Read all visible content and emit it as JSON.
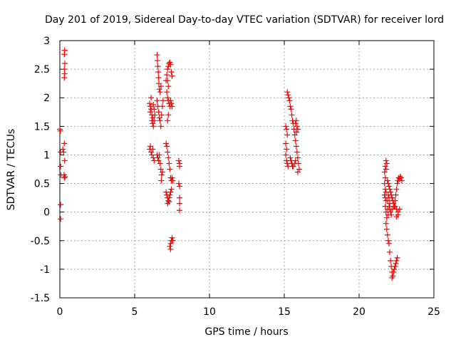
{
  "chart_data": {
    "type": "scatter",
    "title": "Day 201 of 2019, Sidereal Day-to-day VTEC variation (SDTVAR) for receiver lord",
    "xlabel": "GPS time / hours",
    "ylabel": "SDTVAR / TECUs",
    "xlim": [
      0,
      25
    ],
    "ylim": [
      -1.5,
      3
    ],
    "xticks": [
      0,
      5,
      10,
      15,
      20,
      25
    ],
    "yticks": [
      -1.5,
      -1,
      -0.5,
      0,
      0.5,
      1,
      1.5,
      2,
      2.5,
      3
    ],
    "xtick_labels": [
      "0",
      "5",
      "10",
      "15",
      "20",
      "25"
    ],
    "ytick_labels": [
      "-1.5",
      "-1",
      "-0.5",
      "0",
      "0.5",
      "1",
      "1.5",
      "2",
      "2.5",
      "3"
    ],
    "grid": true,
    "marker": "+",
    "color": "#ff0000",
    "series": [
      {
        "name": "lord",
        "points": [
          [
            0.0,
            1.45
          ],
          [
            0.03,
            1.42
          ],
          [
            0.05,
            1.05
          ],
          [
            0.05,
            0.8
          ],
          [
            0.07,
            0.65
          ],
          [
            0.05,
            0.13
          ],
          [
            0.05,
            -0.12
          ],
          [
            0.2,
            1.1
          ],
          [
            0.25,
            1.05
          ],
          [
            0.3,
            1.2
          ],
          [
            0.32,
            0.9
          ],
          [
            0.28,
            0.65
          ],
          [
            0.3,
            0.6
          ],
          [
            0.35,
            0.62
          ],
          [
            0.32,
            2.83
          ],
          [
            0.3,
            2.76
          ],
          [
            0.33,
            2.6
          ],
          [
            0.3,
            2.5
          ],
          [
            0.32,
            2.42
          ],
          [
            0.3,
            2.35
          ],
          [
            6.0,
            1.9
          ],
          [
            6.05,
            1.85
          ],
          [
            6.1,
            1.8
          ],
          [
            6.05,
            1.75
          ],
          [
            6.15,
            1.7
          ],
          [
            6.2,
            1.65
          ],
          [
            6.15,
            1.6
          ],
          [
            6.2,
            1.55
          ],
          [
            6.25,
            1.5
          ],
          [
            6.3,
            1.6
          ],
          [
            6.35,
            1.7
          ],
          [
            6.3,
            1.8
          ],
          [
            6.25,
            1.88
          ],
          [
            6.1,
            2.0
          ],
          [
            6.0,
            1.1
          ],
          [
            6.05,
            1.15
          ],
          [
            6.1,
            1.05
          ],
          [
            6.15,
            1.0
          ],
          [
            6.2,
            1.1
          ],
          [
            6.25,
            0.95
          ],
          [
            6.3,
            0.9
          ],
          [
            6.5,
            2.75
          ],
          [
            6.52,
            2.65
          ],
          [
            6.55,
            2.55
          ],
          [
            6.58,
            2.45
          ],
          [
            6.6,
            2.35
          ],
          [
            6.62,
            2.25
          ],
          [
            6.65,
            2.15
          ],
          [
            6.7,
            2.1
          ],
          [
            6.75,
            2.2
          ],
          [
            6.5,
            1.95
          ],
          [
            6.55,
            1.85
          ],
          [
            6.6,
            1.75
          ],
          [
            6.65,
            1.65
          ],
          [
            6.7,
            1.6
          ],
          [
            6.75,
            1.5
          ],
          [
            6.8,
            1.7
          ],
          [
            6.85,
            1.85
          ],
          [
            6.9,
            1.95
          ],
          [
            6.5,
            1.0
          ],
          [
            6.55,
            0.95
          ],
          [
            6.6,
            0.9
          ],
          [
            6.65,
            1.0
          ],
          [
            6.7,
            0.85
          ],
          [
            6.75,
            0.75
          ],
          [
            6.8,
            0.65
          ],
          [
            6.85,
            0.7
          ],
          [
            6.78,
            0.55
          ],
          [
            7.1,
            2.3
          ],
          [
            7.15,
            2.4
          ],
          [
            7.2,
            2.5
          ],
          [
            7.25,
            2.55
          ],
          [
            7.3,
            2.6
          ],
          [
            7.35,
            2.62
          ],
          [
            7.4,
            2.58
          ],
          [
            7.45,
            2.45
          ],
          [
            7.5,
            2.38
          ],
          [
            7.2,
            2.3
          ],
          [
            7.25,
            2.2
          ],
          [
            7.15,
            2.1
          ],
          [
            7.2,
            2.0
          ],
          [
            7.25,
            1.95
          ],
          [
            7.3,
            1.9
          ],
          [
            7.35,
            1.85
          ],
          [
            7.4,
            1.95
          ],
          [
            7.45,
            1.9
          ],
          [
            7.5,
            1.85
          ],
          [
            7.2,
            1.6
          ],
          [
            7.25,
            1.7
          ],
          [
            7.1,
            1.2
          ],
          [
            7.15,
            1.15
          ],
          [
            7.2,
            1.05
          ],
          [
            7.25,
            0.95
          ],
          [
            7.3,
            0.85
          ],
          [
            7.35,
            0.75
          ],
          [
            7.4,
            0.6
          ],
          [
            7.45,
            0.55
          ],
          [
            7.5,
            0.6
          ],
          [
            7.55,
            0.55
          ],
          [
            7.1,
            0.35
          ],
          [
            7.15,
            0.3
          ],
          [
            7.2,
            0.25
          ],
          [
            7.25,
            0.2
          ],
          [
            7.3,
            0.25
          ],
          [
            7.35,
            0.3
          ],
          [
            7.4,
            0.35
          ],
          [
            7.45,
            0.4
          ],
          [
            7.3,
            0.18
          ],
          [
            7.2,
            0.15
          ],
          [
            7.35,
            -0.6
          ],
          [
            7.4,
            -0.55
          ],
          [
            7.45,
            -0.5
          ],
          [
            7.5,
            -0.45
          ],
          [
            7.55,
            -0.5
          ],
          [
            7.4,
            -0.65
          ],
          [
            7.95,
            0.9
          ],
          [
            8.0,
            0.85
          ],
          [
            8.0,
            0.8
          ],
          [
            7.95,
            0.5
          ],
          [
            8.0,
            0.45
          ],
          [
            8.0,
            0.25
          ],
          [
            8.0,
            0.15
          ],
          [
            8.0,
            0.03
          ],
          [
            15.1,
            1.5
          ],
          [
            15.15,
            1.45
          ],
          [
            15.2,
            1.35
          ],
          [
            15.1,
            1.2
          ],
          [
            15.15,
            1.1
          ],
          [
            15.1,
            1.0
          ],
          [
            15.15,
            0.9
          ],
          [
            15.2,
            0.85
          ],
          [
            15.25,
            0.8
          ],
          [
            15.2,
            2.1
          ],
          [
            15.25,
            2.05
          ],
          [
            15.3,
            2.0
          ],
          [
            15.35,
            1.95
          ],
          [
            15.4,
            1.85
          ],
          [
            15.45,
            1.8
          ],
          [
            15.5,
            1.7
          ],
          [
            15.55,
            1.6
          ],
          [
            15.6,
            1.55
          ],
          [
            15.65,
            1.45
          ],
          [
            15.7,
            1.35
          ],
          [
            15.75,
            1.25
          ],
          [
            15.8,
            1.15
          ],
          [
            15.85,
            1.05
          ],
          [
            15.9,
            0.95
          ],
          [
            15.95,
            0.85
          ],
          [
            16.0,
            0.75
          ],
          [
            15.9,
            0.7
          ],
          [
            15.4,
            0.95
          ],
          [
            15.45,
            0.9
          ],
          [
            15.5,
            0.85
          ],
          [
            15.55,
            0.8
          ],
          [
            15.6,
            0.8
          ],
          [
            15.7,
            0.85
          ],
          [
            15.75,
            0.9
          ],
          [
            15.75,
            1.55
          ],
          [
            15.8,
            1.6
          ],
          [
            15.85,
            1.5
          ],
          [
            15.9,
            1.45
          ],
          [
            15.8,
            1.4
          ],
          [
            21.8,
            0.9
          ],
          [
            21.85,
            0.85
          ],
          [
            21.75,
            0.8
          ],
          [
            21.8,
            0.75
          ],
          [
            21.7,
            0.7
          ],
          [
            21.75,
            0.6
          ],
          [
            21.7,
            0.5
          ],
          [
            21.75,
            0.4
          ],
          [
            21.8,
            0.35
          ],
          [
            21.7,
            0.3
          ],
          [
            21.75,
            0.25
          ],
          [
            21.8,
            0.2
          ],
          [
            21.75,
            0.1
          ],
          [
            21.8,
            0.0
          ],
          [
            21.85,
            -0.1
          ],
          [
            21.8,
            -0.2
          ],
          [
            21.85,
            -0.3
          ],
          [
            21.9,
            -0.4
          ],
          [
            21.95,
            -0.5
          ],
          [
            22.0,
            -0.55
          ],
          [
            22.05,
            -0.7
          ],
          [
            22.1,
            -0.85
          ],
          [
            22.15,
            -0.95
          ],
          [
            22.2,
            -1.05
          ],
          [
            22.25,
            -1.12
          ],
          [
            22.2,
            -1.15
          ],
          [
            22.3,
            -1.05
          ],
          [
            22.35,
            -1.0
          ],
          [
            22.4,
            -0.95
          ],
          [
            22.45,
            -0.9
          ],
          [
            22.5,
            -0.85
          ],
          [
            22.55,
            -0.8
          ],
          [
            21.9,
            0.55
          ],
          [
            21.95,
            0.5
          ],
          [
            22.0,
            0.45
          ],
          [
            22.05,
            0.4
          ],
          [
            22.1,
            0.35
          ],
          [
            22.15,
            0.3
          ],
          [
            22.2,
            0.25
          ],
          [
            22.25,
            0.2
          ],
          [
            22.3,
            0.15
          ],
          [
            22.35,
            0.1
          ],
          [
            22.4,
            0.1
          ],
          [
            22.5,
            0.05
          ],
          [
            22.6,
            0.0
          ],
          [
            22.7,
            0.05
          ],
          [
            22.6,
            -0.05
          ],
          [
            22.5,
            -0.08
          ],
          [
            22.0,
            0.1
          ],
          [
            22.05,
            0.05
          ],
          [
            22.1,
            0.0
          ],
          [
            22.15,
            -0.05
          ],
          [
            22.2,
            0.05
          ],
          [
            22.3,
            0.1
          ],
          [
            22.4,
            0.2
          ],
          [
            22.45,
            0.3
          ],
          [
            22.5,
            0.4
          ],
          [
            22.55,
            0.5
          ],
          [
            22.6,
            0.55
          ],
          [
            22.65,
            0.6
          ],
          [
            22.7,
            0.58
          ],
          [
            22.75,
            0.62
          ],
          [
            22.8,
            0.6
          ],
          [
            22.85,
            0.55
          ],
          [
            21.9,
            0.2
          ],
          [
            21.95,
            0.3
          ],
          [
            22.0,
            0.25
          ],
          [
            22.05,
            0.15
          ],
          [
            21.9,
            0.05
          ],
          [
            21.95,
            -0.05
          ]
        ]
      }
    ]
  }
}
